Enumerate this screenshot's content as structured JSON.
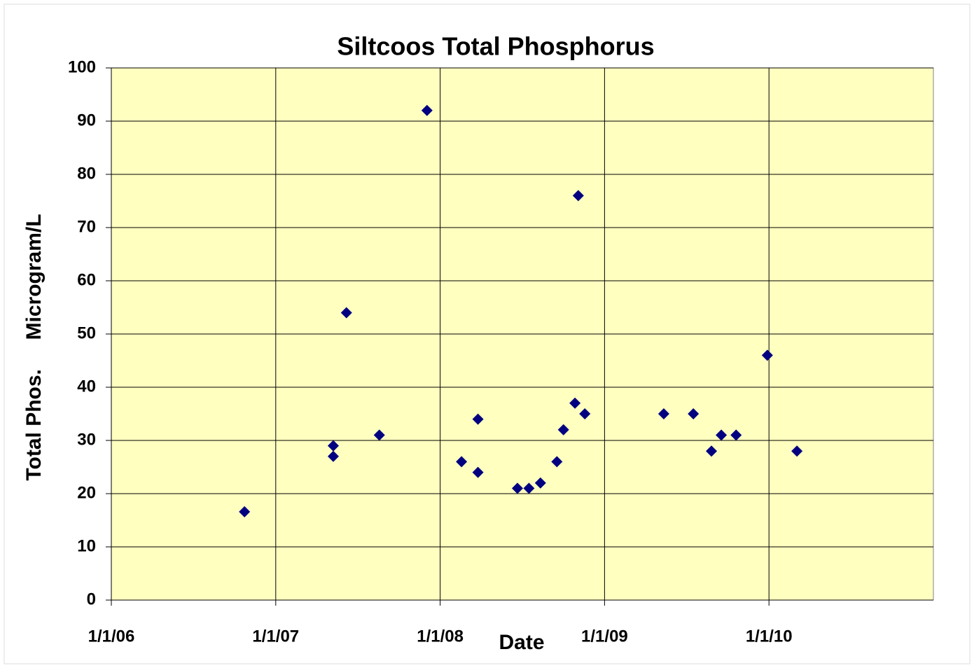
{
  "chart_data": {
    "type": "scatter",
    "title": "Siltcoos Total Phosphorus",
    "x_label": "Date",
    "y_label": "Total Phos.     Microgram/L",
    "series": [
      {
        "name": "Total Phosphorus",
        "color": "#000080",
        "x": [
          2006.81,
          2007.35,
          2007.35,
          2007.43,
          2007.63,
          2007.92,
          2008.13,
          2008.23,
          2008.23,
          2008.47,
          2008.54,
          2008.61,
          2008.71,
          2008.75,
          2008.82,
          2008.84,
          2008.88,
          2009.36,
          2009.54,
          2009.65,
          2009.71,
          2009.8,
          2009.99,
          2010.17
        ],
        "values": [
          16.6,
          29,
          27,
          54,
          31,
          92,
          26,
          34,
          24,
          21,
          21,
          22,
          26,
          32,
          37,
          76,
          35,
          35,
          35,
          28,
          31,
          31,
          46,
          28
        ]
      }
    ],
    "xlim": [
      2006,
      2011
    ],
    "xticks": [
      {
        "value": 2006,
        "label": "1/1/06"
      },
      {
        "value": 2007,
        "label": "1/1/07"
      },
      {
        "value": 2008,
        "label": "1/1/08"
      },
      {
        "value": 2009,
        "label": "1/1/09"
      },
      {
        "value": 2010,
        "label": "1/1/10"
      }
    ],
    "ylim": [
      0,
      100
    ],
    "yticks": [
      0,
      10,
      20,
      30,
      40,
      50,
      60,
      70,
      80,
      90,
      100
    ],
    "grid": true,
    "plot_background": "#ffffc0"
  }
}
